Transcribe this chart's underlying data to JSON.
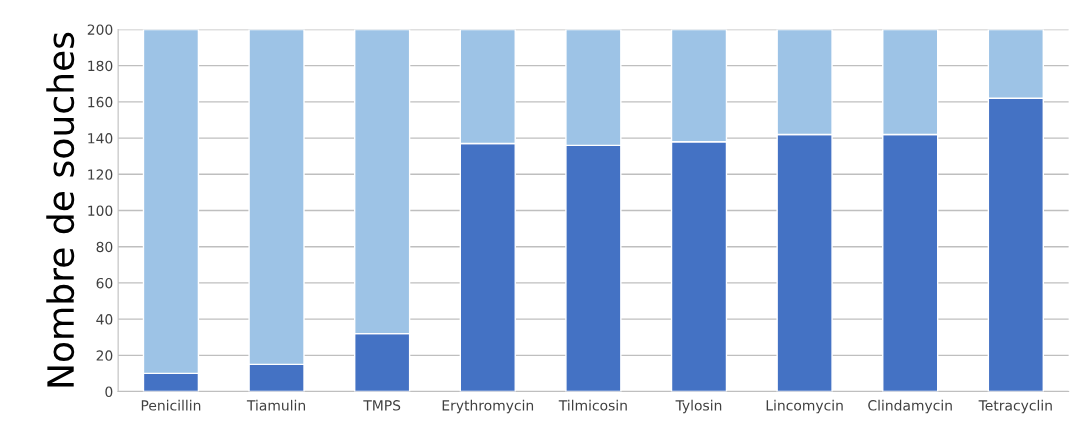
{
  "chart_data": {
    "type": "bar",
    "stacked": true,
    "ylabel": "Nombre de souches",
    "categories": [
      "Penicillin",
      "Tiamulin",
      "TMPS",
      "Erythromycin",
      "Tilmicosin",
      "Tylosin",
      "Lincomycin",
      "Clindamycin",
      "Tetracyclin"
    ],
    "series": [
      {
        "color": "#4472c4",
        "values": [
          10,
          15,
          32,
          137,
          136,
          138,
          142,
          142,
          162
        ]
      },
      {
        "color": "#9dc3e6",
        "values": [
          190,
          185,
          168,
          63,
          64,
          62,
          58,
          58,
          38
        ]
      }
    ],
    "ylim": [
      0,
      200
    ],
    "yticks": [
      0,
      20,
      40,
      60,
      80,
      100,
      120,
      140,
      160,
      180,
      200
    ],
    "grid": "y",
    "legend": false
  }
}
